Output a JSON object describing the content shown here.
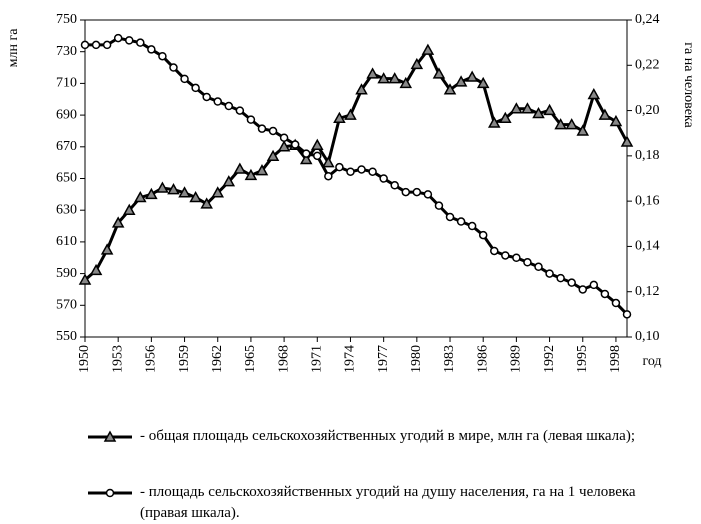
{
  "chart_data": {
    "type": "line",
    "y_label": "млн га",
    "y2_label": "га на человека",
    "x_label": "год",
    "x": [
      1950,
      1951,
      1952,
      1953,
      1954,
      1955,
      1956,
      1957,
      1958,
      1959,
      1960,
      1961,
      1962,
      1963,
      1964,
      1965,
      1966,
      1967,
      1968,
      1969,
      1970,
      1971,
      1972,
      1973,
      1974,
      1975,
      1976,
      1977,
      1978,
      1979,
      1980,
      1981,
      1982,
      1983,
      1984,
      1985,
      1986,
      1987,
      1988,
      1989,
      1990,
      1991,
      1992,
      1993,
      1994,
      1995,
      1996,
      1997,
      1998,
      1999
    ],
    "series": [
      {
        "name": "- общая площадь сельскохозяйственных угодий в мире, млн га (левая шкала);",
        "color": "#000000",
        "marker": "triangle",
        "axis": "y",
        "values": [
          586,
          592,
          605,
          622,
          630,
          638,
          640,
          644,
          643,
          641,
          638,
          634,
          641,
          648,
          656,
          652,
          655,
          664,
          670,
          671,
          662,
          671,
          660,
          688,
          690,
          706,
          716,
          713,
          713,
          710,
          722,
          731,
          716,
          706,
          711,
          714,
          710,
          685,
          688,
          694,
          694,
          691,
          693,
          684,
          684,
          680,
          703,
          690,
          686,
          673
        ]
      },
      {
        "name": "- площадь сельскохозяйственных угодий на душу населения, га на 1 человека (правая шкала).",
        "color": "#000000",
        "marker": "circle",
        "axis": "y2",
        "values": [
          0.229,
          0.229,
          0.229,
          0.232,
          0.231,
          0.23,
          0.227,
          0.224,
          0.219,
          0.214,
          0.21,
          0.206,
          0.204,
          0.202,
          0.2,
          0.196,
          0.192,
          0.191,
          0.188,
          0.185,
          0.181,
          0.18,
          0.171,
          0.175,
          0.173,
          0.174,
          0.173,
          0.17,
          0.167,
          0.164,
          0.164,
          0.163,
          0.158,
          0.153,
          0.151,
          0.149,
          0.145,
          0.138,
          0.136,
          0.135,
          0.133,
          0.131,
          0.128,
          0.126,
          0.124,
          0.121,
          0.123,
          0.119,
          0.115,
          0.11
        ]
      }
    ],
    "xlim": [
      1950,
      1999
    ],
    "xticks": [
      1950,
      1953,
      1956,
      1959,
      1962,
      1965,
      1968,
      1971,
      1974,
      1977,
      1980,
      1983,
      1986,
      1989,
      1992,
      1995,
      1998
    ],
    "ylim": [
      550,
      750
    ],
    "yticks": [
      550,
      570,
      590,
      610,
      630,
      650,
      670,
      690,
      710,
      730,
      750
    ],
    "y2lim": [
      0.1,
      0.24
    ],
    "y2ticks": [
      {
        "value": 0.1,
        "label": "0,10"
      },
      {
        "value": 0.12,
        "label": "0,12"
      },
      {
        "value": 0.14,
        "label": "0,14"
      },
      {
        "value": 0.16,
        "label": "0,16"
      },
      {
        "value": 0.18,
        "label": "0,18"
      },
      {
        "value": 0.2,
        "label": "0,20"
      },
      {
        "value": 0.22,
        "label": "0,22"
      },
      {
        "value": 0.24,
        "label": "0,24"
      }
    ],
    "grid": false
  }
}
